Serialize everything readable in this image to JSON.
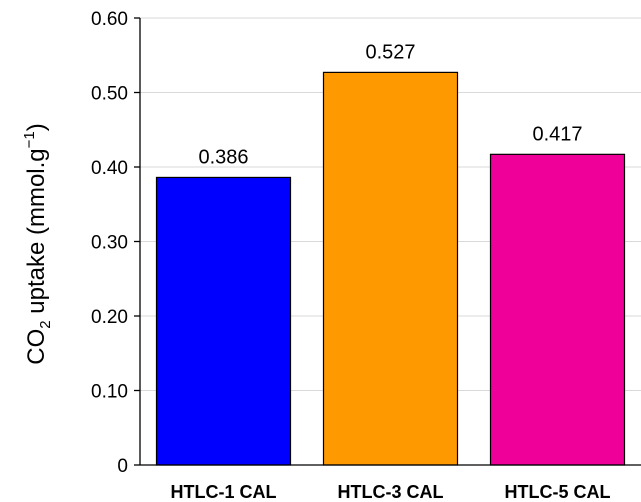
{
  "chart_data": {
    "type": "bar",
    "categories": [
      "HTLC-1 CAL",
      "HTLC-3 CAL",
      "HTLC-5 CAL"
    ],
    "values": [
      0.386,
      0.527,
      0.417
    ],
    "data_labels": [
      "0.386",
      "0.527",
      "0.417"
    ],
    "colors": [
      "#0000ff",
      "#ff9900",
      "#ee0099"
    ],
    "ylabel": {
      "prefix": "CO",
      "sub": "2",
      "middle": " uptake (mmol.g",
      "sup": "−1",
      "suffix": ")"
    },
    "ylim": [
      0,
      0.6
    ],
    "yticks": [
      0,
      0.1,
      0.2,
      0.3,
      0.4,
      0.5,
      0.6
    ],
    "ytick_labels": [
      "0",
      "0.10",
      "0.20",
      "0.30",
      "0.40",
      "0.50",
      "0.60"
    ],
    "grid": true
  }
}
